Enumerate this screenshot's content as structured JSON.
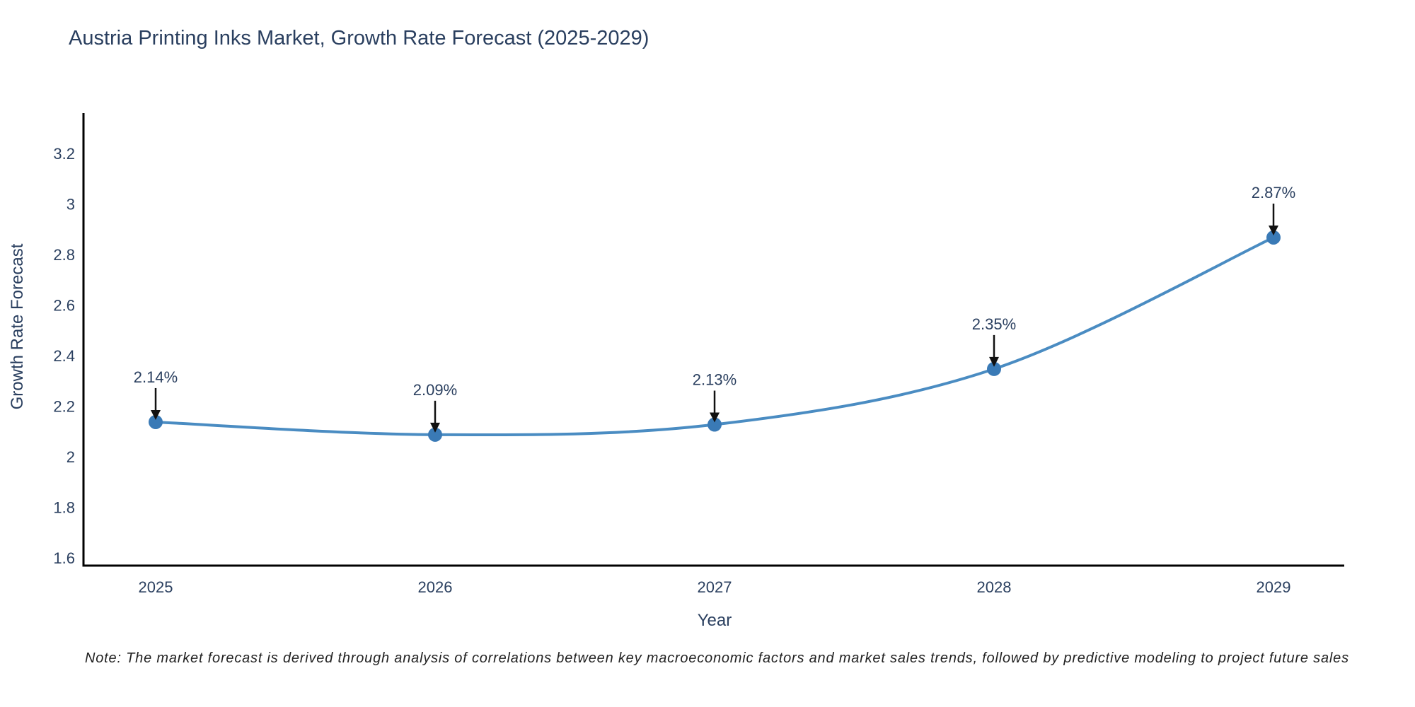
{
  "page": {
    "title": "Austria Printing Inks Market, Growth Rate Forecast (2025-2029)",
    "note": "Note: The market forecast is derived through analysis of correlations between key macroeconomic factors and market sales trends, followed by predictive modeling to project future sales"
  },
  "chart_data": {
    "type": "line",
    "title": "Austria Printing Inks Market, Growth Rate Forecast (2025-2029)",
    "xlabel": "Year",
    "ylabel": "Growth Rate Forecast",
    "categories": [
      "2025",
      "2026",
      "2027",
      "2028",
      "2029"
    ],
    "series": [
      {
        "name": "Growth Rate Forecast",
        "values": [
          2.14,
          2.09,
          2.13,
          2.35,
          2.87
        ],
        "point_labels": [
          "2.14%",
          "2.09%",
          "2.13%",
          "2.35%",
          "2.87%"
        ]
      }
    ],
    "yticks": [
      "1.6",
      "1.8",
      "2",
      "2.2",
      "2.4",
      "2.6",
      "2.8",
      "3",
      "3.2"
    ],
    "ylim": [
      1.6,
      3.2
    ],
    "grid": false,
    "legend": false,
    "line_shape": "spline",
    "annotation_style": "label-with-down-arrow",
    "colors": {
      "background": "#ffffff",
      "text": "#2a3f5f",
      "note": "#222222",
      "axis": "#000000",
      "line": "#4a8cc2",
      "marker": "#3a7ab6",
      "arrow": "#111111"
    }
  }
}
